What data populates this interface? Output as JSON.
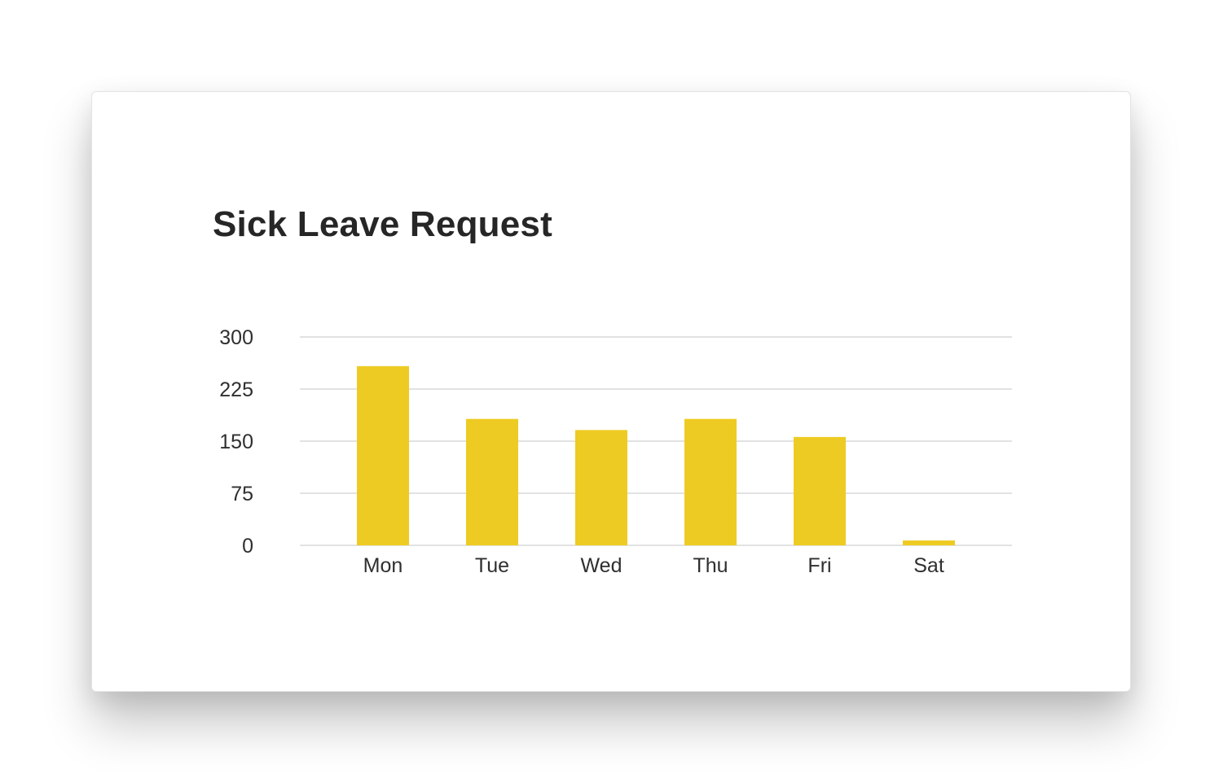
{
  "chart_data": {
    "type": "bar",
    "title": "Sick Leave Request",
    "xlabel": "",
    "ylabel": "",
    "categories": [
      "Mon",
      "Tue",
      "Wed",
      "Thu",
      "Fri",
      "Sat"
    ],
    "values": [
      258,
      182,
      166,
      182,
      156,
      7
    ],
    "yticks": [
      "0",
      "75",
      "150",
      "225",
      "300"
    ],
    "ylim": [
      0,
      300
    ],
    "grid": true,
    "legend": "none",
    "bar_color": "#eecb22",
    "grid_color": "#e2e2e2",
    "text_color": "#2f2f2f"
  }
}
